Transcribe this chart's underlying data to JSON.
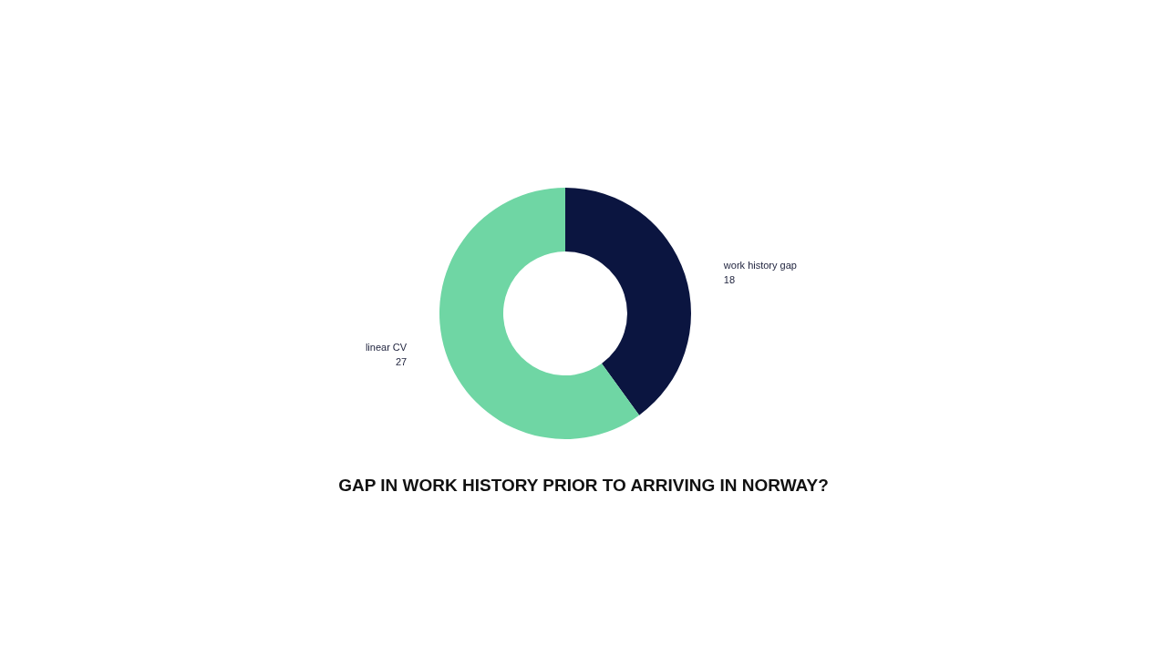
{
  "chart_data": {
    "type": "donut",
    "title": "GAP IN WORK HISTORY PRIOR TO ARRIVING IN NORWAY?",
    "categories": [
      "work history gap",
      "linear CV"
    ],
    "values": [
      18,
      27
    ],
    "colors": [
      "#0b1540",
      "#6fd6a4"
    ],
    "data_labels": true,
    "legend": false
  }
}
